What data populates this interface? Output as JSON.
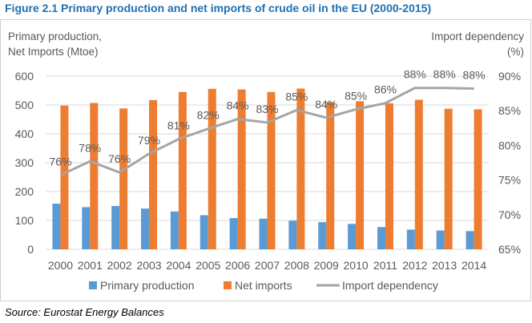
{
  "title": "Figure 2.1 Primary production and net imports of crude oil in the EU (2000-2015)",
  "source": "Source: Eurostat Energy Balances",
  "chart_data": {
    "type": "bar",
    "categories": [
      "2000",
      "2001",
      "2002",
      "2003",
      "2004",
      "2005",
      "2006",
      "2007",
      "2008",
      "2009",
      "2010",
      "2011",
      "2012",
      "2013",
      "2014"
    ],
    "ylabel": [
      "Primary production,",
      "Net Imports (Mtoe)"
    ],
    "y2label": [
      "Import dependency",
      "(%)"
    ],
    "ylim": [
      0,
      600
    ],
    "yticks": [
      "0",
      "100",
      "200",
      "300",
      "400",
      "500",
      "600"
    ],
    "y2lim": [
      65,
      90
    ],
    "y2ticks": [
      "65%",
      "70%",
      "75%",
      "80%",
      "85%",
      "90%"
    ],
    "grid": true,
    "legend": "bottom",
    "series": [
      {
        "name": "Primary production",
        "type": "bar",
        "color": "#5b9bd5",
        "values": [
          158,
          146,
          150,
          141,
          131,
          118,
          108,
          106,
          99,
          94,
          88,
          77,
          68,
          65,
          63
        ]
      },
      {
        "name": "Net imports",
        "type": "bar",
        "color": "#ed7d31",
        "values": [
          498,
          507,
          488,
          517,
          545,
          556,
          554,
          545,
          557,
          510,
          513,
          506,
          518,
          487,
          485
        ]
      },
      {
        "name": "Import dependency",
        "type": "line",
        "axis": "right",
        "color": "#a5a5a5",
        "values": [
          75.7,
          77.7,
          76.1,
          78.8,
          80.9,
          82.4,
          83.8,
          83.3,
          85.1,
          84.0,
          85.2,
          86.1,
          88.3,
          88.3,
          88.2
        ],
        "labels": [
          "76%",
          "78%",
          "76%",
          "79%",
          "81%",
          "82%",
          "84%",
          "83%",
          "85%",
          "84%",
          "85%",
          "86%",
          "88%",
          "88%",
          "88%"
        ]
      }
    ]
  }
}
